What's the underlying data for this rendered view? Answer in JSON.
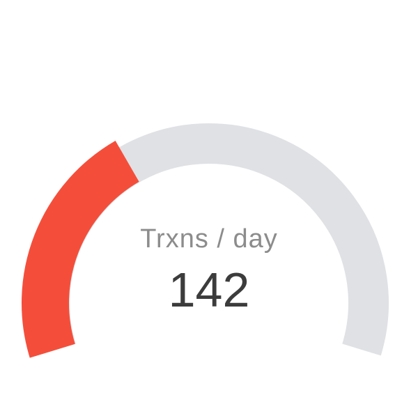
{
  "gauge": {
    "label": "Trxns / day",
    "value": "142",
    "fill_fraction": 0.36,
    "colors": {
      "fill": "#f44e3b",
      "track": "#e0e1e4",
      "label": "#8c8c8c",
      "value": "#3c3c3c"
    }
  }
}
